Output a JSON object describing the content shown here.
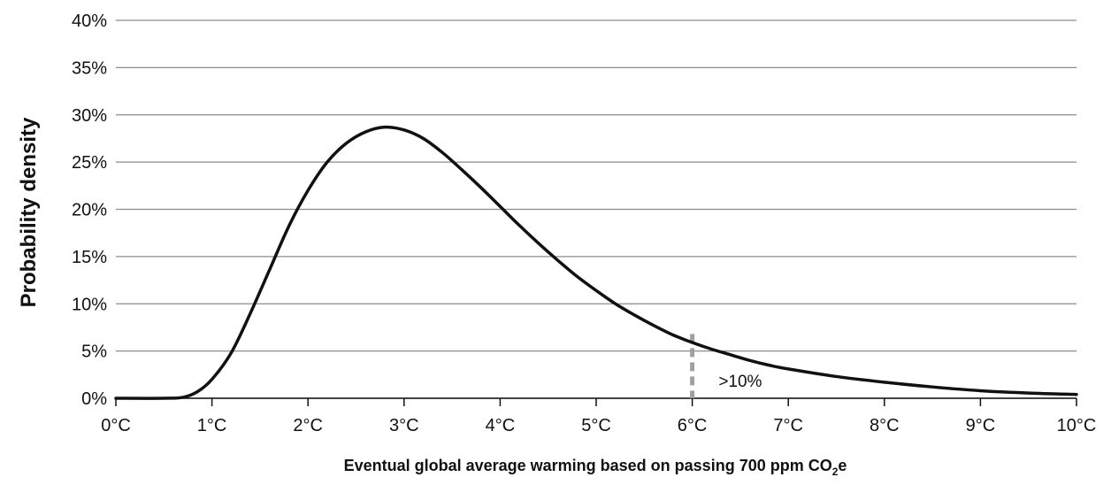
{
  "chart_data": {
    "type": "line",
    "title": "",
    "xlabel": {
      "prefix": "Eventual global average warming based on passing 700 ppm CO",
      "subscript": "2",
      "suffix": "e"
    },
    "ylabel": "Probability density",
    "xlim": [
      0,
      10
    ],
    "ylim": [
      0,
      40
    ],
    "x_ticks": [
      0,
      1,
      2,
      3,
      4,
      5,
      6,
      7,
      8,
      9,
      10
    ],
    "x_tick_labels": [
      "0°C",
      "1°C",
      "2°C",
      "3°C",
      "4°C",
      "5°C",
      "6°C",
      "7°C",
      "8°C",
      "9°C",
      "10°C"
    ],
    "y_ticks": [
      0,
      5,
      10,
      15,
      20,
      25,
      30,
      35,
      40
    ],
    "y_tick_labels": [
      "0%",
      "5%",
      "10%",
      "15%",
      "20%",
      "25%",
      "30%",
      "35%",
      "40%"
    ],
    "grid": "horizontal",
    "series": [
      {
        "color": "#111111",
        "points": [
          [
            0,
            0
          ],
          [
            0.5,
            0
          ],
          [
            0.7,
            0.1
          ],
          [
            0.85,
            0.7
          ],
          [
            1.0,
            2.0
          ],
          [
            1.2,
            4.8
          ],
          [
            1.4,
            9.0
          ],
          [
            1.6,
            13.6
          ],
          [
            1.8,
            18.2
          ],
          [
            2.0,
            22.0
          ],
          [
            2.2,
            25.0
          ],
          [
            2.4,
            27.0
          ],
          [
            2.6,
            28.2
          ],
          [
            2.8,
            28.7
          ],
          [
            3.0,
            28.4
          ],
          [
            3.2,
            27.5
          ],
          [
            3.4,
            26.0
          ],
          [
            3.6,
            24.2
          ],
          [
            3.8,
            22.3
          ],
          [
            4.0,
            20.3
          ],
          [
            4.2,
            18.3
          ],
          [
            4.4,
            16.4
          ],
          [
            4.6,
            14.6
          ],
          [
            4.8,
            12.9
          ],
          [
            5.0,
            11.4
          ],
          [
            5.2,
            10.0
          ],
          [
            5.4,
            8.8
          ],
          [
            5.6,
            7.7
          ],
          [
            5.8,
            6.7
          ],
          [
            6.0,
            5.9
          ],
          [
            6.2,
            5.2
          ],
          [
            6.4,
            4.6
          ],
          [
            6.6,
            4.0
          ],
          [
            6.8,
            3.5
          ],
          [
            7.0,
            3.1
          ],
          [
            7.5,
            2.3
          ],
          [
            8.0,
            1.7
          ],
          [
            8.5,
            1.2
          ],
          [
            9.0,
            0.8
          ],
          [
            9.5,
            0.55
          ],
          [
            10.0,
            0.4
          ]
        ]
      }
    ],
    "marker_line": {
      "x": 6,
      "y_top": 6.8,
      "color": "#a0a0a0",
      "style": "dashed"
    },
    "annotations": [
      {
        "text": ">10%",
        "x": 6.5,
        "y": 1.2
      }
    ],
    "colors": {
      "grid": "#8c8c8c",
      "axis": "#111111"
    }
  }
}
